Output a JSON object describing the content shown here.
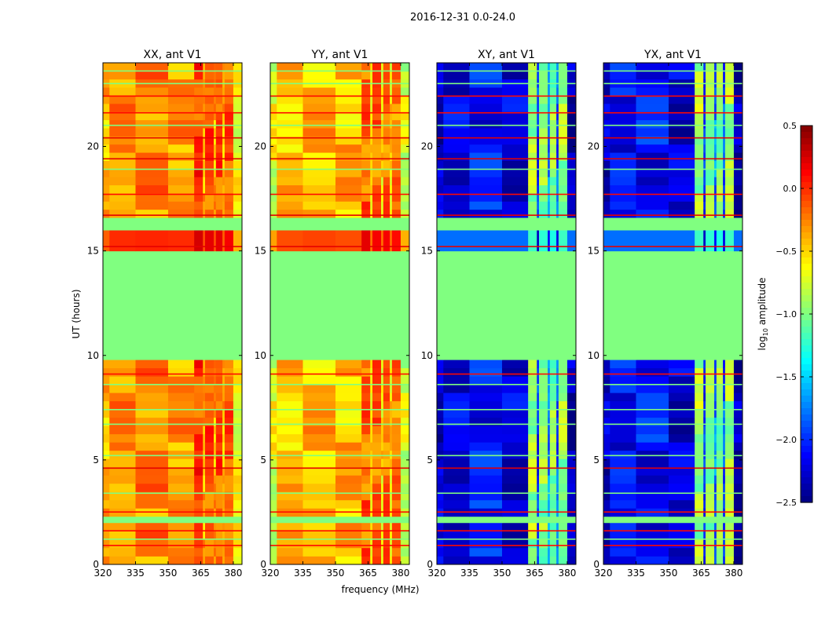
{
  "chart_data": {
    "type": "heatmap",
    "suptitle": "2016-12-31 0.0-24.0",
    "xlabel": "frequency (MHz)",
    "ylabel": "UT (hours)",
    "xlim": [
      320,
      384
    ],
    "ylim": [
      0,
      24
    ],
    "xticks": [
      320,
      335,
      350,
      365,
      380
    ],
    "yticks": [
      0,
      5,
      10,
      15,
      20
    ],
    "colorbar": {
      "label_prefix": "log",
      "label_sub": "10",
      "label_suffix": " amplitude",
      "vmin": -2.5,
      "vmax": 0.5,
      "ticks": [
        "0.5",
        "0.0",
        "−0.5",
        "−1.0",
        "−1.5",
        "−2.0",
        "−2.5"
      ],
      "tick_values": [
        0.5,
        0.0,
        -0.5,
        -1.0,
        -1.5,
        -2.0,
        -2.5
      ],
      "colormap": "jet"
    },
    "flagged_value": -1.0,
    "time_segments": [
      {
        "t0": 0,
        "t1": 2.0,
        "kind": "data"
      },
      {
        "t0": 2.0,
        "t1": 2.3,
        "kind": "flagged"
      },
      {
        "t0": 2.3,
        "t1": 9.8,
        "kind": "data"
      },
      {
        "t0": 9.8,
        "t1": 15.0,
        "kind": "flagged"
      },
      {
        "t0": 15.0,
        "t1": 16.0,
        "kind": "hot"
      },
      {
        "t0": 16.0,
        "t1": 16.6,
        "kind": "flagged"
      },
      {
        "t0": 16.6,
        "t1": 24,
        "kind": "data"
      }
    ],
    "freq_edges": [
      320,
      323,
      335,
      350,
      362,
      366,
      367,
      371,
      372,
      375,
      376,
      380,
      384
    ],
    "panels": [
      {
        "title": "XX, ant V1",
        "columns": [
          -0.45,
          -0.3,
          -0.28,
          -0.3,
          -0.05,
          -0.4,
          -0.1,
          -0.4,
          -0.1,
          -0.45,
          -0.15,
          -0.7
        ],
        "hot_offset": 0.3
      },
      {
        "title": "YY, ant V1",
        "columns": [
          -0.7,
          -0.45,
          -0.42,
          -0.45,
          -0.15,
          -0.55,
          -0.2,
          -0.55,
          -0.2,
          -0.55,
          -0.25,
          -0.75
        ],
        "hot_offset": 0.35
      },
      {
        "title": "XY, ant V1",
        "columns": [
          -2.3,
          -2.2,
          -2.1,
          -2.25,
          -0.9,
          -2.0,
          -0.95,
          -1.8,
          -1.0,
          -1.9,
          -0.9,
          -2.35
        ],
        "hot_offset": 0.5
      },
      {
        "title": "YX, ant V1",
        "columns": [
          -2.3,
          -2.15,
          -2.1,
          -2.25,
          -0.9,
          -2.0,
          -0.95,
          -1.8,
          -1.0,
          -1.9,
          -0.9,
          -2.35
        ],
        "hot_offset": 0.5
      }
    ],
    "line_events": [
      {
        "t": 0.9,
        "value": 0.1
      },
      {
        "t": 1.2,
        "value": -1.0
      },
      {
        "t": 1.6,
        "value": 0.1
      },
      {
        "t": 2.5,
        "value": 0.1
      },
      {
        "t": 3.4,
        "value": -1.0
      },
      {
        "t": 4.6,
        "value": 0.2
      },
      {
        "t": 5.2,
        "value": -1.0
      },
      {
        "t": 6.7,
        "value": -1.0
      },
      {
        "t": 7.4,
        "value": -1.0
      },
      {
        "t": 8.6,
        "value": -1.0
      },
      {
        "t": 9.1,
        "value": 0.1
      },
      {
        "t": 15.2,
        "value": 0.2
      },
      {
        "t": 16.7,
        "value": 0.2
      },
      {
        "t": 17.7,
        "value": 0.1
      },
      {
        "t": 18.9,
        "value": -1.0
      },
      {
        "t": 19.4,
        "value": 0.2
      },
      {
        "t": 20.4,
        "value": 0.2
      },
      {
        "t": 21.0,
        "value": -1.0
      },
      {
        "t": 21.6,
        "value": 0.1
      },
      {
        "t": 22.4,
        "value": 0.1
      },
      {
        "t": 23.0,
        "value": -1.0
      },
      {
        "t": 23.6,
        "value": -1.0
      }
    ]
  }
}
